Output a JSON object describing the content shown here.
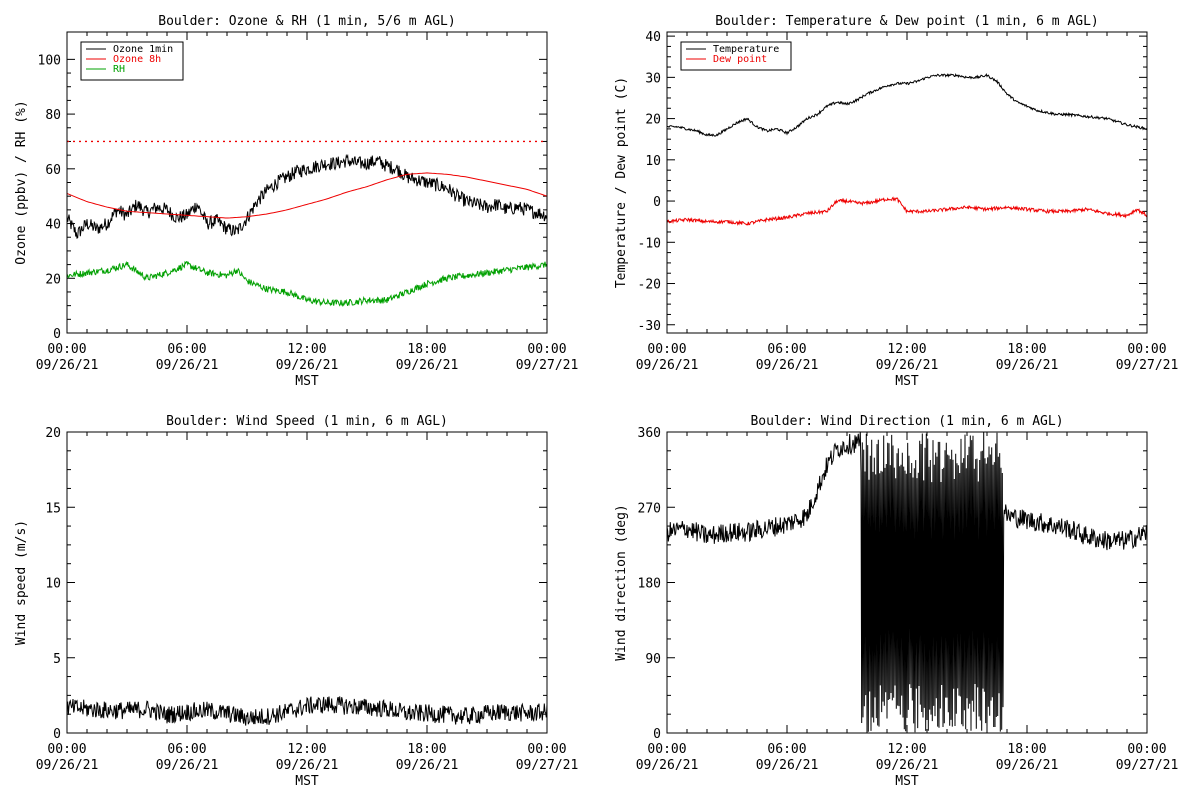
{
  "chart_data": [
    {
      "type": "line",
      "title": "Boulder: Ozone & RH (1 min, 5/6 m AGL)",
      "ylabel": "Ozone (ppbv) / RH (%)",
      "xlabel": "MST",
      "ylim": [
        0,
        110
      ],
      "yticks": [
        0,
        20,
        40,
        60,
        80,
        100
      ],
      "xlim": [
        "09/26/21 00:00",
        "09/27/21 00:00"
      ],
      "legend": "top-left",
      "reference_lines": [
        {
          "y": 70,
          "style": "dotted",
          "color": "#ee0000"
        }
      ],
      "series": [
        {
          "name": "Ozone 1min",
          "color": "#000000",
          "noise": 2.5,
          "x": [
            0,
            0.5,
            1,
            1.5,
            2,
            2.5,
            3,
            3.5,
            4,
            4.5,
            5,
            5.5,
            6,
            6.5,
            7,
            7.5,
            8,
            8.5,
            9,
            9.5,
            10,
            10.5,
            11,
            11.5,
            12,
            12.5,
            13,
            13.5,
            14,
            14.5,
            15,
            15.5,
            16,
            16.5,
            17,
            17.5,
            18,
            18.5,
            19,
            19.5,
            20,
            20.5,
            21,
            21.5,
            22,
            22.5,
            23,
            23.5,
            24
          ],
          "y": [
            42,
            36,
            40,
            38,
            40,
            45,
            43,
            47,
            44,
            46,
            45,
            42,
            43,
            47,
            40,
            41,
            38,
            37,
            42,
            48,
            52,
            55,
            57,
            59,
            60,
            61,
            62,
            62,
            63,
            62,
            62,
            63,
            61,
            60,
            57,
            56,
            55,
            54,
            53,
            50,
            48,
            47,
            46,
            47,
            45,
            46,
            45,
            44,
            43
          ]
        },
        {
          "name": "Ozone 8h",
          "color": "#ee0000",
          "noise": 0,
          "x": [
            0,
            1,
            2,
            3,
            4,
            5,
            6,
            7,
            8,
            9,
            10,
            11,
            12,
            13,
            14,
            15,
            16,
            17,
            18,
            19,
            20,
            21,
            22,
            23,
            24
          ],
          "y": [
            51,
            48,
            46,
            44.5,
            44,
            43.5,
            43,
            42.5,
            42,
            42.5,
            43.5,
            45,
            47,
            49,
            51.5,
            53.5,
            56,
            58,
            58.5,
            58,
            57,
            55.5,
            54,
            52.5,
            50
          ]
        },
        {
          "name": "RH",
          "color": "#00a000",
          "noise": 1.2,
          "x": [
            0,
            1,
            2,
            3,
            4,
            5,
            6,
            7,
            8,
            8.5,
            9,
            10,
            11,
            12,
            13,
            14,
            15,
            16,
            17,
            18,
            19,
            20,
            21,
            22,
            23,
            24
          ],
          "y": [
            21,
            22,
            23,
            25,
            20,
            22,
            25,
            22,
            21,
            23,
            19,
            16,
            15,
            12,
            11,
            11,
            12,
            12,
            15,
            18,
            20,
            21,
            22,
            23,
            24,
            25
          ]
        }
      ]
    },
    {
      "type": "line",
      "title": "Boulder: Temperature & Dew point (1 min, 6 m AGL)",
      "ylabel": "Temperature / Dew point (C)",
      "xlabel": "MST",
      "ylim": [
        -32,
        41
      ],
      "yticks": [
        -30,
        -20,
        -10,
        0,
        10,
        20,
        30,
        40
      ],
      "xlim": [
        "09/26/21 00:00",
        "09/27/21 00:00"
      ],
      "legend": "top-left",
      "series": [
        {
          "name": "Temperature",
          "color": "#000000",
          "noise": 0.3,
          "x": [
            0,
            0.5,
            1,
            1.5,
            2,
            2.5,
            3,
            3.5,
            4,
            4.5,
            5,
            5.5,
            6,
            6.5,
            7,
            7.5,
            8,
            8.5,
            9,
            9.5,
            10,
            10.5,
            11,
            11.5,
            12,
            12.5,
            13,
            13.5,
            14,
            14.5,
            15,
            15.5,
            16,
            16.5,
            17,
            17.5,
            18,
            18.5,
            19,
            19.5,
            20,
            21,
            22,
            23,
            24
          ],
          "y": [
            18,
            18,
            17.5,
            17,
            16,
            16,
            17.5,
            19,
            20,
            18,
            17,
            17.5,
            16.5,
            18,
            20,
            21,
            23,
            24,
            23.5,
            24.5,
            26,
            27,
            28,
            28.5,
            28.5,
            29,
            30,
            30.5,
            30.5,
            30.5,
            30,
            30,
            30.5,
            29,
            26,
            24,
            23,
            22,
            21.5,
            21,
            21,
            20.5,
            20,
            18.5,
            17.5
          ]
        },
        {
          "name": "Dew point",
          "color": "#ee0000",
          "noise": 0.4,
          "x": [
            0,
            1,
            2,
            3,
            4,
            5,
            6,
            7,
            8,
            8.5,
            9,
            9.5,
            10,
            11,
            11.5,
            12,
            13,
            14,
            15,
            16,
            17,
            18,
            19,
            20,
            21,
            22,
            23,
            23.5,
            24
          ],
          "y": [
            -5,
            -4.5,
            -5,
            -5,
            -5.5,
            -4.5,
            -4,
            -3,
            -2.5,
            0,
            0,
            -0.5,
            -0.5,
            0.5,
            0.5,
            -2.5,
            -2.5,
            -2,
            -1.5,
            -2,
            -1.5,
            -2,
            -2.5,
            -2.5,
            -2,
            -3,
            -3.5,
            -2,
            -3.5
          ]
        }
      ]
    },
    {
      "type": "line",
      "title": "Boulder: Wind Speed (1 min, 6 m AGL)",
      "ylabel": "Wind speed (m/s)",
      "xlabel": "MST",
      "ylim": [
        0,
        20
      ],
      "yticks": [
        0,
        5,
        10,
        15,
        20
      ],
      "xlim": [
        "09/26/21 00:00",
        "09/27/21 00:00"
      ],
      "series": [
        {
          "name": "",
          "color": "#000000",
          "noise": 0.6,
          "x": [
            0,
            1,
            2,
            3,
            4,
            5,
            6,
            7,
            8,
            9,
            10,
            11,
            12,
            13,
            14,
            15,
            16,
            17,
            18,
            19,
            20,
            21,
            22,
            23,
            24
          ],
          "y": [
            1.7,
            1.6,
            1.5,
            1.5,
            1.6,
            1.2,
            1.4,
            1.5,
            1.3,
            1.0,
            1.1,
            1.4,
            1.8,
            1.9,
            1.8,
            1.7,
            1.6,
            1.3,
            1.3,
            1.2,
            1.1,
            1.3,
            1.4,
            1.3,
            1.4
          ]
        }
      ]
    },
    {
      "type": "line",
      "title": "Boulder: Wind Direction (1 min, 6 m AGL)",
      "ylabel": "Wind direction (deg)",
      "xlabel": "MST",
      "ylim": [
        0,
        360
      ],
      "yticks": [
        0,
        90,
        180,
        270,
        360
      ],
      "xlim": [
        "09/26/21 00:00",
        "09/27/21 00:00"
      ],
      "series": [
        {
          "name": "",
          "color": "#000000",
          "noise": 12,
          "x": [
            0,
            1,
            2,
            3,
            4,
            5,
            6,
            7,
            8,
            8.5,
            9,
            10,
            11,
            12,
            13,
            14,
            15,
            16,
            16.5,
            17,
            18,
            19,
            20,
            21,
            22,
            23,
            24
          ],
          "y": [
            240,
            245,
            235,
            240,
            240,
            245,
            250,
            260,
            320,
            340,
            345,
            350,
            340,
            300,
            250,
            230,
            220,
            240,
            280,
            260,
            255,
            250,
            245,
            235,
            230,
            230,
            240
          ],
          "scatter_band": {
            "x_start": 9.7,
            "x_end": 16.8,
            "low": 0,
            "high": 360
          }
        }
      ]
    }
  ],
  "x_ticks": [
    {
      "time": "00:00",
      "date": "09/26/21"
    },
    {
      "time": "06:00",
      "date": "09/26/21"
    },
    {
      "time": "12:00",
      "date": "09/26/21"
    },
    {
      "time": "18:00",
      "date": "09/26/21"
    },
    {
      "time": "00:00",
      "date": "09/27/21"
    }
  ]
}
